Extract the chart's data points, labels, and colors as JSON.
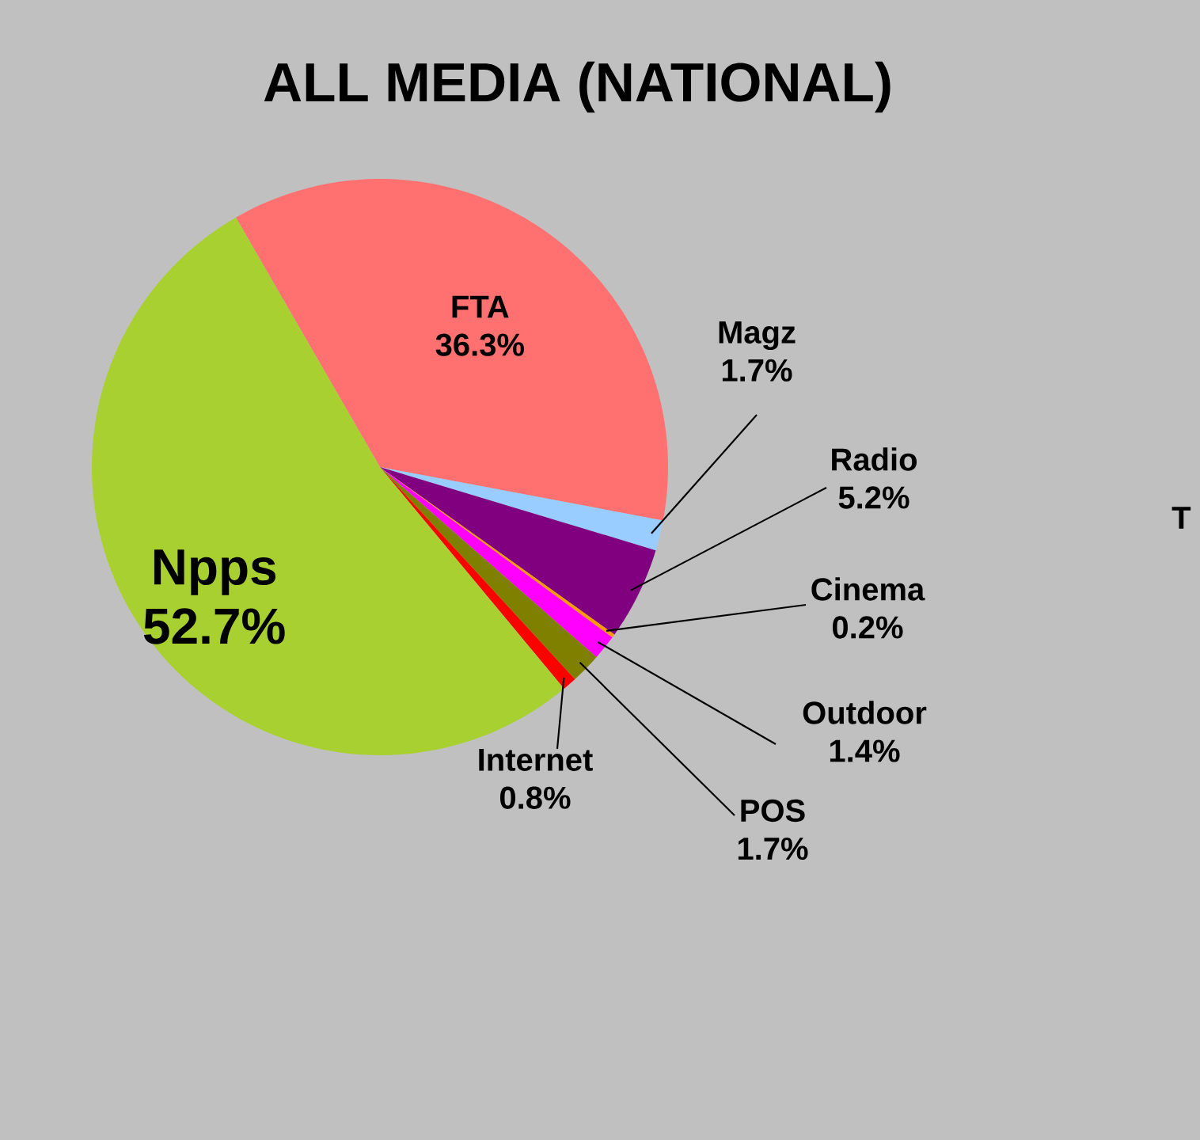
{
  "chart_data": {
    "type": "pie",
    "title": "ALL MEDIA (NATIONAL)",
    "categories": [
      "FTA",
      "Magz",
      "Radio",
      "Cinema",
      "Outdoor",
      "POS",
      "Internet",
      "Npps"
    ],
    "values": [
      36.3,
      1.7,
      5.2,
      0.2,
      1.4,
      1.7,
      0.8,
      52.7
    ],
    "value_labels": [
      "36.3%",
      "1.7%",
      "5.2%",
      "0.2%",
      "1.4%",
      "1.7%",
      "0.8%",
      "52.7%"
    ],
    "colors": [
      "#ff7070",
      "#99ccff",
      "#800080",
      "#ff9900",
      "#ff00ff",
      "#808000",
      "#ff0000",
      "#a8d030"
    ],
    "annotations": [
      "T"
    ]
  }
}
